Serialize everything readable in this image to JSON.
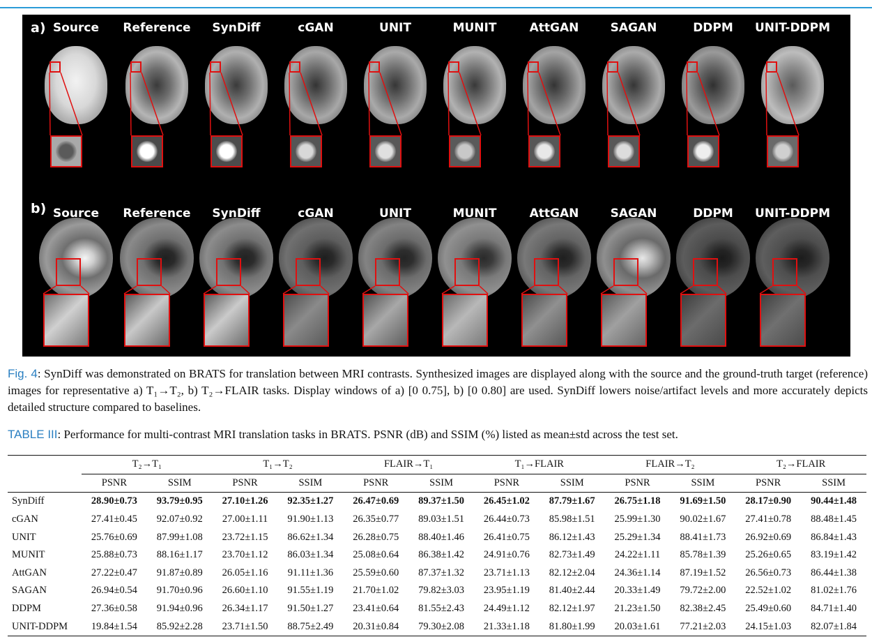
{
  "figure": {
    "panel_a": {
      "label": "a)",
      "columns": [
        "Source",
        "Reference",
        "SynDiff",
        "cGAN",
        "UNIT",
        "MUNIT",
        "AttGAN",
        "SAGAN",
        "DDPM",
        "UNIT-DDPM"
      ]
    },
    "panel_b": {
      "label": "b)",
      "columns": [
        "Source",
        "Reference",
        "SynDiff",
        "cGAN",
        "UNIT",
        "MUNIT",
        "AttGAN",
        "SAGAN",
        "DDPM",
        "UNIT-DDPM"
      ]
    },
    "colors": {
      "background": "#000000",
      "roi": "#e01010"
    }
  },
  "fig_caption": {
    "prefix": "Fig. 4",
    "text": ": SynDiff was demonstrated on BRATS for translation between MRI contrasts. Synthesized images are displayed along with the source and the ground-truth target (reference) images for representative a) T₁→T₂, b) T₂→FLAIR tasks. Display windows of a) [0 0.75], b) [0 0.80] are used. SynDiff lowers noise/artifact levels and more accurately depicts detailed structure compared to baselines."
  },
  "table_caption": {
    "prefix": "TABLE III",
    "text": ": Performance for multi-contrast MRI translation tasks in BRATS. PSNR (dB) and SSIM (%) listed as mean±std across the test set."
  },
  "table": {
    "tasks": [
      "T₂→T₁",
      "T₁→T₂",
      "FLAIR→T₁",
      "T₁→FLAIR",
      "FLAIR→T₂",
      "T₂→FLAIR"
    ],
    "metrics": [
      "PSNR",
      "SSIM"
    ],
    "rows": [
      {
        "method": "SynDiff",
        "bold": true,
        "values": [
          "28.90±0.73",
          "93.79±0.95",
          "27.10±1.26",
          "92.35±1.27",
          "26.47±0.69",
          "89.37±1.50",
          "26.45±1.02",
          "87.79±1.67",
          "26.75±1.18",
          "91.69±1.50",
          "28.17±0.90",
          "90.44±1.48"
        ]
      },
      {
        "method": "cGAN",
        "bold": false,
        "values": [
          "27.41±0.45",
          "92.07±0.92",
          "27.00±1.11",
          "91.90±1.13",
          "26.35±0.77",
          "89.03±1.51",
          "26.44±0.73",
          "85.98±1.51",
          "25.99±1.30",
          "90.02±1.67",
          "27.41±0.78",
          "88.48±1.45"
        ]
      },
      {
        "method": "UNIT",
        "bold": false,
        "values": [
          "25.76±0.69",
          "87.99±1.08",
          "23.72±1.15",
          "86.62±1.34",
          "26.28±0.75",
          "88.40±1.46",
          "26.41±0.75",
          "86.12±1.43",
          "25.29±1.34",
          "88.41±1.73",
          "26.92±0.69",
          "86.84±1.43"
        ]
      },
      {
        "method": "MUNIT",
        "bold": false,
        "values": [
          "25.88±0.73",
          "88.16±1.17",
          "23.70±1.12",
          "86.03±1.34",
          "25.08±0.64",
          "86.38±1.42",
          "24.91±0.76",
          "82.73±1.49",
          "24.22±1.11",
          "85.78±1.39",
          "25.26±0.65",
          "83.19±1.42"
        ]
      },
      {
        "method": "AttGAN",
        "bold": false,
        "values": [
          "27.22±0.47",
          "91.87±0.89",
          "26.05±1.16",
          "91.11±1.36",
          "25.59±0.60",
          "87.37±1.32",
          "23.71±1.13",
          "82.12±2.04",
          "24.36±1.14",
          "87.19±1.52",
          "26.56±0.73",
          "86.44±1.38"
        ]
      },
      {
        "method": "SAGAN",
        "bold": false,
        "values": [
          "26.94±0.54",
          "91.70±0.96",
          "26.60±1.10",
          "91.55±1.19",
          "21.70±1.02",
          "79.82±3.03",
          "23.95±1.19",
          "81.40±2.44",
          "20.33±1.49",
          "79.72±2.00",
          "22.52±1.02",
          "81.02±1.76"
        ]
      },
      {
        "method": "DDPM",
        "bold": false,
        "values": [
          "27.36±0.58",
          "91.94±0.96",
          "26.34±1.17",
          "91.50±1.27",
          "23.41±0.64",
          "81.55±2.43",
          "24.49±1.12",
          "82.12±1.97",
          "21.23±1.50",
          "82.38±2.45",
          "25.49±0.60",
          "84.71±1.40"
        ]
      },
      {
        "method": "UNIT-DDPM",
        "bold": false,
        "values": [
          "19.84±1.54",
          "85.92±2.28",
          "23.71±1.50",
          "88.75±2.49",
          "20.31±0.84",
          "79.30±2.08",
          "21.33±1.18",
          "81.80±1.99",
          "20.03±1.61",
          "77.21±2.03",
          "24.15±1.03",
          "82.07±1.84"
        ]
      }
    ]
  }
}
